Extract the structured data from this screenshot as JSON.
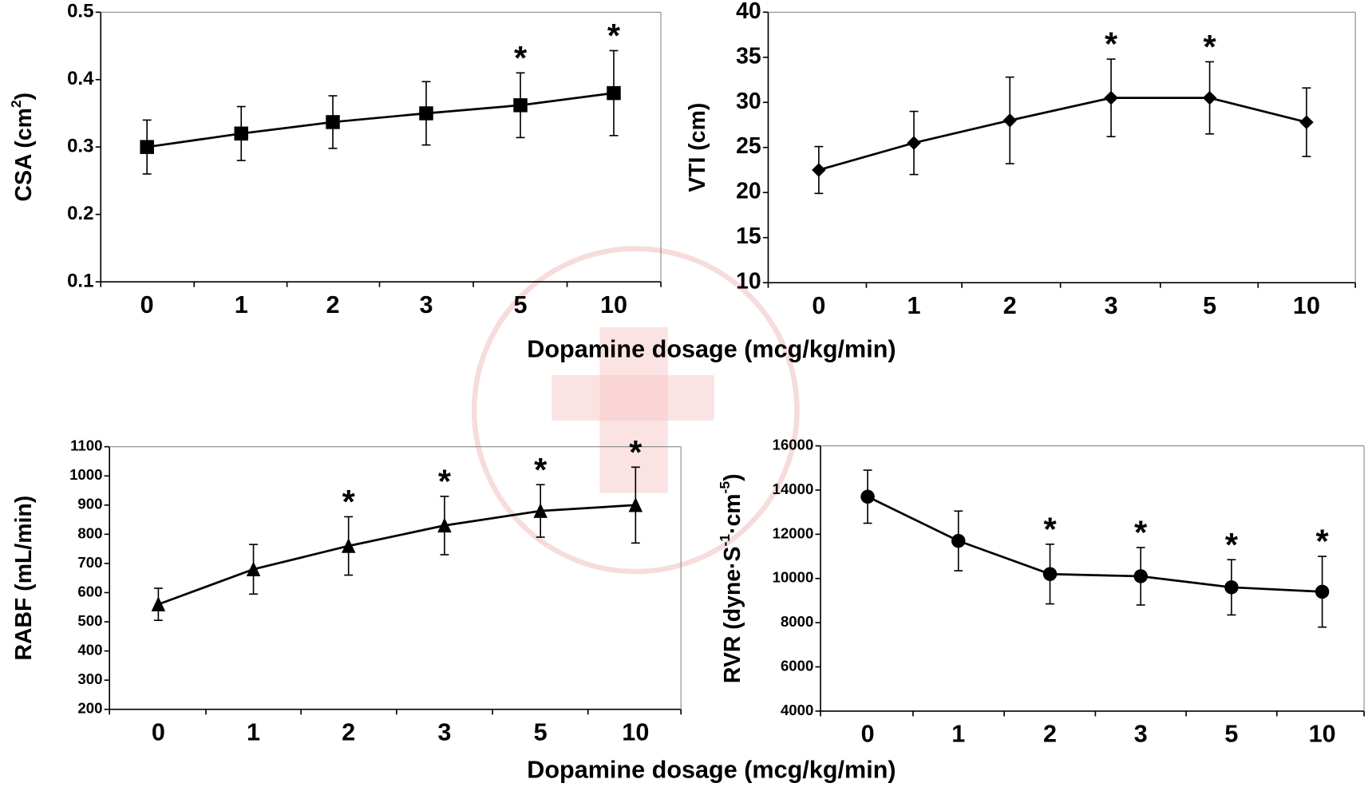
{
  "chart_data": [
    {
      "type": "line",
      "ylabel": [
        "CSA (cm",
        "2",
        ")"
      ],
      "marker": "square",
      "categories": [
        "0",
        "1",
        "2",
        "3",
        "5",
        "10"
      ],
      "series": [
        {
          "color": "#000000",
          "values": [
            0.3,
            0.32,
            0.337,
            0.35,
            0.362,
            0.38
          ],
          "errors": [
            0.04,
            0.04,
            0.039,
            0.047,
            0.048,
            0.063
          ]
        }
      ],
      "annotations": [
        {
          "category": "5",
          "text": "*"
        },
        {
          "category": "10",
          "text": "*"
        }
      ],
      "ylim": [
        0.1,
        0.5
      ],
      "yticks": [
        0.1,
        0.2,
        0.3,
        0.4,
        0.5
      ]
    },
    {
      "type": "line",
      "ylabel": [
        "VTI (cm)"
      ],
      "marker": "diamond",
      "categories": [
        "0",
        "1",
        "2",
        "3",
        "5",
        "10"
      ],
      "series": [
        {
          "color": "#000000",
          "values": [
            22.5,
            25.5,
            28,
            30.5,
            30.5,
            27.8
          ],
          "errors": [
            2.6,
            3.5,
            4.8,
            4.3,
            4,
            3.8
          ]
        }
      ],
      "annotations": [
        {
          "category": "3",
          "text": "*"
        },
        {
          "category": "5",
          "text": "*"
        }
      ],
      "ylim": [
        10,
        40
      ],
      "yticks": [
        10,
        15,
        20,
        25,
        30,
        35,
        40
      ],
      "xlabel": "Dopamine dosage (mcg/kg/min)"
    },
    {
      "type": "line",
      "ylabel": [
        "RABF (mL/min)"
      ],
      "marker": "triangle",
      "categories": [
        "0",
        "1",
        "2",
        "3",
        "5",
        "10"
      ],
      "series": [
        {
          "color": "#000000",
          "values": [
            560,
            680,
            760,
            830,
            880,
            900
          ],
          "errors": [
            55,
            85,
            100,
            100,
            90,
            130
          ]
        }
      ],
      "annotations": [
        {
          "category": "2",
          "text": "*"
        },
        {
          "category": "3",
          "text": "*"
        },
        {
          "category": "5",
          "text": "*"
        },
        {
          "category": "10",
          "text": "*"
        }
      ],
      "ylim": [
        200,
        1100
      ],
      "yticks": [
        200,
        300,
        400,
        500,
        600,
        700,
        800,
        900,
        1000,
        1100
      ]
    },
    {
      "type": "line",
      "ylabel": [
        "RVR (dyne·S",
        "-1",
        "·cm",
        "-5",
        ")"
      ],
      "marker": "circle",
      "categories": [
        "0",
        "1",
        "2",
        "3",
        "5",
        "10"
      ],
      "series": [
        {
          "color": "#000000",
          "values": [
            13700,
            11700,
            10200,
            10100,
            9600,
            9400
          ],
          "errors": [
            1200,
            1350,
            1350,
            1300,
            1250,
            1600
          ]
        }
      ],
      "annotations": [
        {
          "category": "2",
          "text": "*"
        },
        {
          "category": "3",
          "text": "*"
        },
        {
          "category": "5",
          "text": "*"
        },
        {
          "category": "10",
          "text": "*"
        }
      ],
      "ylim": [
        4000,
        16000
      ],
      "yticks": [
        4000,
        6000,
        8000,
        10000,
        12000,
        14000,
        16000
      ],
      "xlabel": "Dopamine dosage (mcg/kg/min)"
    }
  ]
}
